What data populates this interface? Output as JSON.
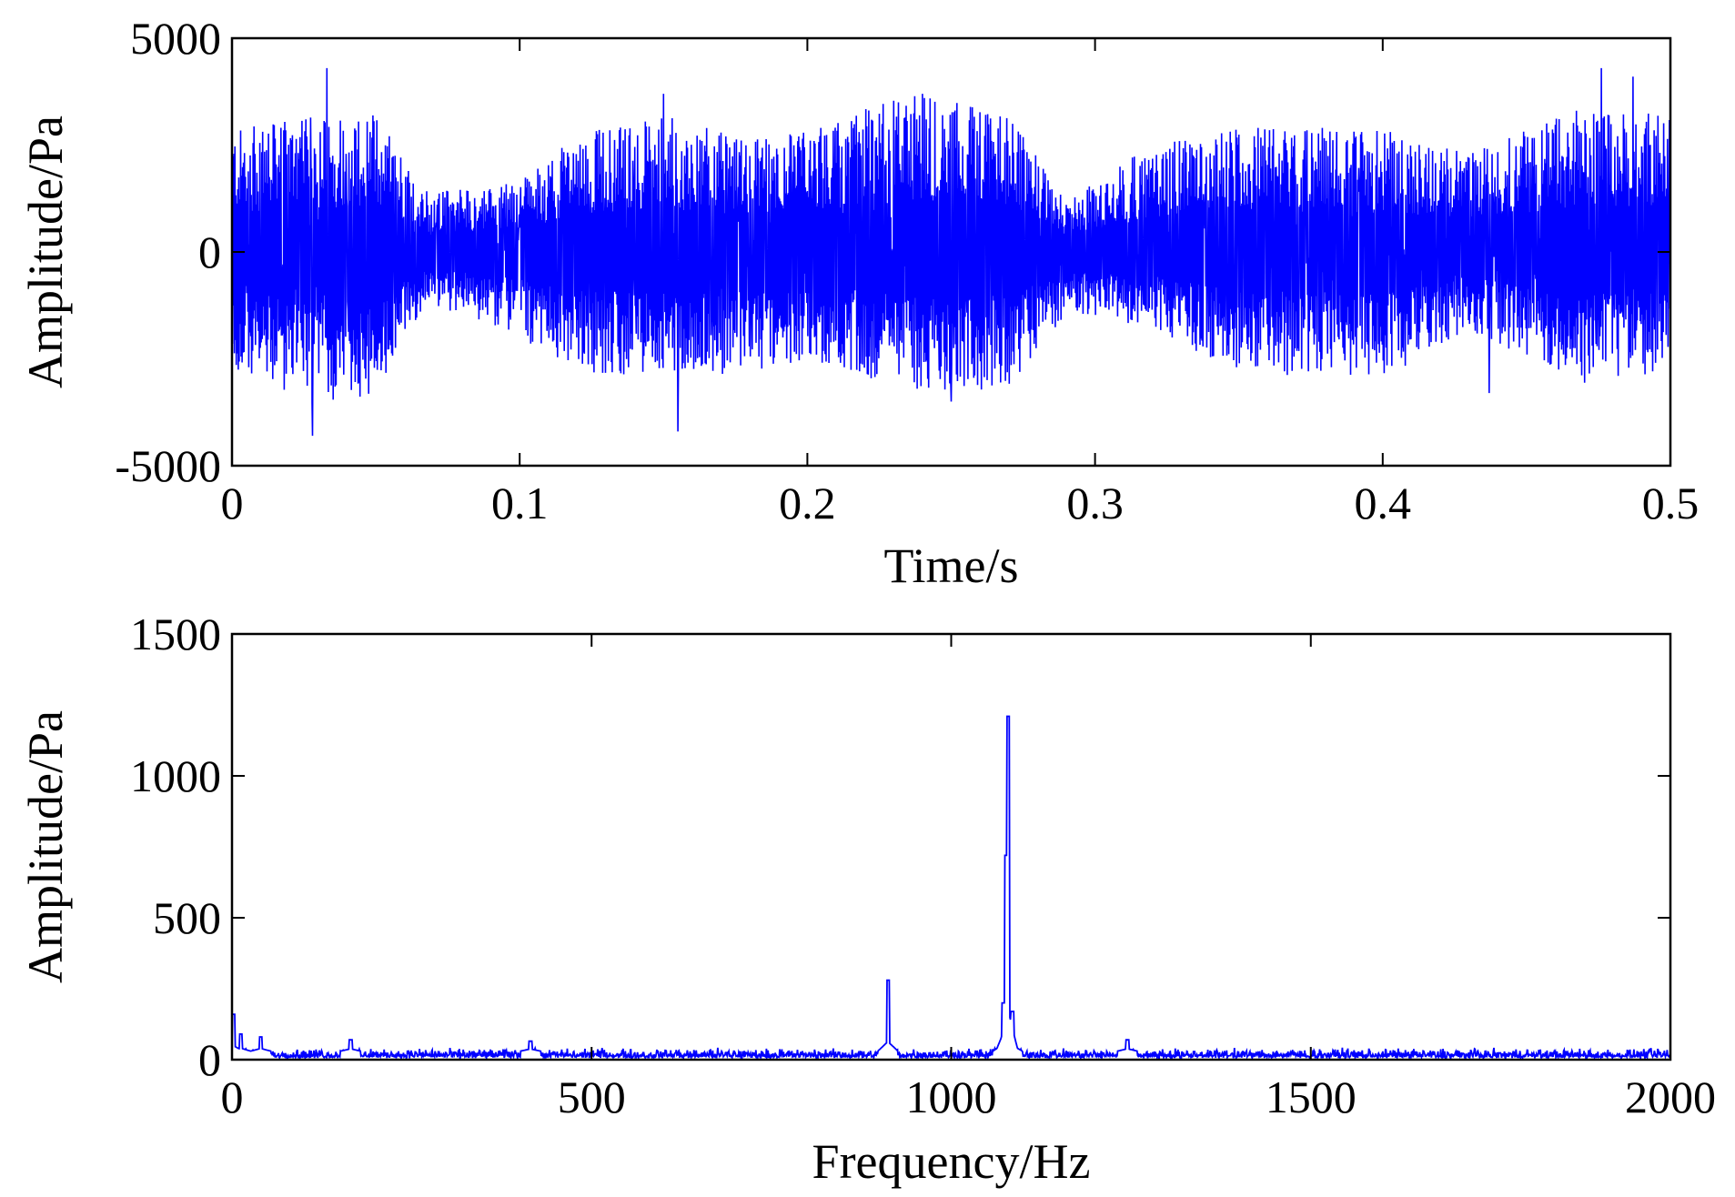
{
  "colors": {
    "series": "#0000ff",
    "axes": "#000000",
    "background": "#ffffff"
  },
  "chart_data": [
    {
      "type": "line",
      "title": "",
      "xlabel": "Time/s",
      "ylabel": "Amplitude/Pa",
      "xlim": [
        0,
        0.5
      ],
      "ylim": [
        -5000,
        5000
      ],
      "xticks": [
        0,
        0.1,
        0.2,
        0.3,
        0.4,
        0.5
      ],
      "yticks": [
        -5000,
        0,
        5000
      ],
      "xtick_labels": [
        "0",
        "0.1",
        "0.2",
        "0.3",
        "0.4",
        "0.5"
      ],
      "ytick_labels": [
        "-5000",
        "0",
        "5000"
      ],
      "grid": false,
      "series": [
        {
          "color": "#0000ff",
          "envelope": {
            "x": [
              0,
              0.03,
              0.05,
              0.068,
              0.1,
              0.12,
              0.15,
              0.18,
              0.2,
              0.24,
              0.27,
              0.29,
              0.32,
              0.35,
              0.4,
              0.43,
              0.47,
              0.5
            ],
            "upper": [
              2600,
              2900,
              3000,
              1300,
              1500,
              2500,
              2900,
              2400,
              2600,
              3500,
              2900,
              1100,
              2300,
              2700,
              2600,
              2100,
              3100,
              2900
            ],
            "lower": [
              -2600,
              -3300,
              -3000,
              -1100,
              -1800,
              -2600,
              -2700,
              -2600,
              -2300,
              -3000,
              -2900,
              -1300,
              -1600,
              -2600,
              -2700,
              -1700,
              -2800,
              -2600
            ]
          },
          "peaks": [
            {
              "x": 0.033,
              "y": 4300
            },
            {
              "x": 0.028,
              "y": -4300
            },
            {
              "x": 0.155,
              "y": -4200
            },
            {
              "x": 0.15,
              "y": 3700
            },
            {
              "x": 0.24,
              "y": 3700
            },
            {
              "x": 0.25,
              "y": -3500
            },
            {
              "x": 0.476,
              "y": 4300
            },
            {
              "x": 0.487,
              "y": 4100
            },
            {
              "x": 0.437,
              "y": -3300
            }
          ]
        }
      ]
    },
    {
      "type": "line",
      "title": "",
      "xlabel": "Frequency/Hz",
      "ylabel": "Amplitude/Pa",
      "xlim": [
        0,
        2000
      ],
      "ylim": [
        0,
        1500
      ],
      "xticks": [
        0,
        500,
        1000,
        1500,
        2000
      ],
      "yticks": [
        0,
        500,
        1000,
        1500
      ],
      "xtick_labels": [
        "0",
        "500",
        "1000",
        "1500",
        "2000"
      ],
      "ytick_labels": [
        "0",
        "500",
        "1000",
        "1500"
      ],
      "grid": false,
      "series": [
        {
          "color": "#0000ff",
          "noise_floor": 30,
          "peaks": [
            {
              "x": 2,
              "y": 160
            },
            {
              "x": 12,
              "y": 90
            },
            {
              "x": 40,
              "y": 80
            },
            {
              "x": 165,
              "y": 70
            },
            {
              "x": 415,
              "y": 65
            },
            {
              "x": 912,
              "y": 280
            },
            {
              "x": 1072,
              "y": 200
            },
            {
              "x": 1076,
              "y": 720
            },
            {
              "x": 1079,
              "y": 1210
            },
            {
              "x": 1085,
              "y": 170
            },
            {
              "x": 1245,
              "y": 70
            }
          ]
        }
      ]
    }
  ]
}
